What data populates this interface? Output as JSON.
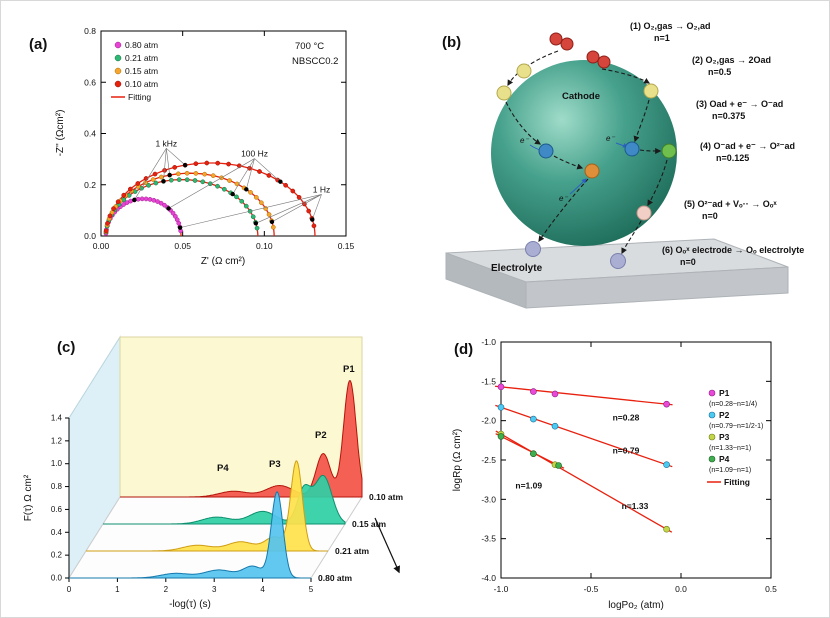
{
  "panels": {
    "a": {
      "label": "(a)"
    },
    "b": {
      "label": "(b)"
    },
    "c": {
      "label": "(c)"
    },
    "d": {
      "label": "(d)"
    }
  },
  "panel_b": {
    "cathode_label": "Cathode",
    "electrolyte_label": "Electrolyte",
    "electron_label": "e⁻",
    "steps": [
      {
        "text": "(1) O₂,gas → O₂,ad",
        "n": "n=1"
      },
      {
        "text": "(2) O₂,gas → 2Oad",
        "n": "n=0.5"
      },
      {
        "text": "(3) Oad + e⁻ → O⁻ad",
        "n": "n=0.375"
      },
      {
        "text": "(4) O⁻ad + e⁻ → O²⁻ad",
        "n": "n=0.125"
      },
      {
        "text": "(5) O²⁻ad + Vₒ·· → Oₒˣ",
        "n": "n=0"
      },
      {
        "text": "(6) Oₒˣ electrode → Oₒ electrolyte",
        "n": "n=0"
      }
    ]
  },
  "chart_data": [
    {
      "id": "a",
      "type": "scatter",
      "title": "Nyquist impedance plot",
      "xlabel": "Z' (Ω cm²)",
      "ylabel": "-Z'' (Ωcm²)",
      "xlim": [
        0,
        0.15
      ],
      "ylim": [
        0,
        0.8
      ],
      "x_ticks": [
        0,
        0.05,
        0.1,
        0.15
      ],
      "y_ticks": [
        0,
        0.2,
        0.4,
        0.6,
        0.8
      ],
      "annotations": [
        "700 °C",
        "NBSCC0.2"
      ],
      "fitting_label": "Fitting",
      "fitting_color": "#e8210f",
      "series": [
        {
          "name": "0.80 atm",
          "color": "#e744d4",
          "edge": "#9c1d8e",
          "x_start": 0.003,
          "x_end": 0.049,
          "peak": 0.145
        },
        {
          "name": "0.21 atm",
          "color": "#2db873",
          "edge": "#146c41",
          "x_start": 0.003,
          "x_end": 0.096,
          "peak": 0.22
        },
        {
          "name": "0.15 atm",
          "color": "#f5a62b",
          "edge": "#a86a0a",
          "x_start": 0.003,
          "x_end": 0.106,
          "peak": 0.245
        },
        {
          "name": "0.10 atm",
          "color": "#e8210f",
          "edge": "#8f1203",
          "x_start": 0.003,
          "x_end": 0.131,
          "peak": 0.285
        }
      ],
      "freq_labels": [
        {
          "label": "1 kHz",
          "x": 0.04,
          "y": 0.35
        },
        {
          "label": "100 Hz",
          "x": 0.094,
          "y": 0.31
        },
        {
          "label": "1 Hz",
          "x": 0.135,
          "y": 0.17
        }
      ]
    },
    {
      "id": "c",
      "type": "area3d",
      "title": "DRT distribution waterfall",
      "xlabel": "-log(τ) (s)",
      "ylabel": "F(τ) Ω cm²",
      "xlim": [
        0,
        5
      ],
      "ylim": [
        0,
        1.4
      ],
      "x_ticks": [
        0,
        1,
        2,
        3,
        4,
        5
      ],
      "y_ticks": [
        0,
        0.2,
        0.4,
        0.6,
        0.8,
        1.0,
        1.2,
        1.4
      ],
      "peak_labels": [
        "P1",
        "P2",
        "P3",
        "P4"
      ],
      "series": [
        {
          "name": "0.10 atm",
          "color": "#f4524a",
          "edge": "#b31409",
          "peaks": [
            {
              "c": 4.75,
              "w": 0.13,
              "h": 1.02
            },
            {
              "c": 4.2,
              "w": 0.15,
              "h": 0.38
            },
            {
              "c": 3.3,
              "w": 0.28,
              "h": 0.1
            },
            {
              "c": 2.35,
              "w": 0.3,
              "h": 0.05
            }
          ]
        },
        {
          "name": "0.15 atm",
          "color": "#2fcfa5",
          "edge": "#0d8f6e",
          "peaks": [
            {
              "c": 4.55,
              "w": 0.18,
              "h": 0.42
            },
            {
              "c": 4.15,
              "w": 0.14,
              "h": 0.3
            },
            {
              "c": 3.3,
              "w": 0.28,
              "h": 0.11
            },
            {
              "c": 2.35,
              "w": 0.3,
              "h": 0.06
            }
          ]
        },
        {
          "name": "0.21 atm",
          "color": "#ffe14a",
          "edge": "#cf9d12",
          "peaks": [
            {
              "c": 4.35,
              "w": 0.12,
              "h": 0.78
            },
            {
              "c": 3.9,
              "w": 0.2,
              "h": 0.12
            },
            {
              "c": 3.2,
              "w": 0.28,
              "h": 0.08
            },
            {
              "c": 2.3,
              "w": 0.3,
              "h": 0.05
            }
          ]
        },
        {
          "name": "0.80 atm",
          "color": "#55c3ee",
          "edge": "#1579ad",
          "peaks": [
            {
              "c": 4.3,
              "w": 0.12,
              "h": 0.75
            },
            {
              "c": 3.8,
              "w": 0.2,
              "h": 0.1
            },
            {
              "c": 3.1,
              "w": 0.3,
              "h": 0.07
            },
            {
              "c": 2.2,
              "w": 0.3,
              "h": 0.04
            }
          ]
        }
      ]
    },
    {
      "id": "d",
      "type": "scatter",
      "title": "logRp vs logPo2",
      "xlabel": "logPo₂ (atm)",
      "ylabel": "logRp (Ω cm²)",
      "xlim": [
        -1.0,
        0.5
      ],
      "ylim": [
        -4.0,
        -1.0
      ],
      "x_ticks": [
        -1.0,
        -0.5,
        0.0,
        0.5
      ],
      "y_ticks": [
        -4.0,
        -3.5,
        -3.0,
        -2.5,
        -2.0,
        -1.5,
        -1.0
      ],
      "fit_color": "#e8210f",
      "fitting_label": "Fitting",
      "series": [
        {
          "name": "P1",
          "sub": "(n=0.28~n=1/4)",
          "color": "#e948d8",
          "edge": "#8e1c82",
          "points": [
            [
              -1.0,
              -1.57
            ],
            [
              -0.82,
              -1.63
            ],
            [
              -0.7,
              -1.66
            ],
            [
              -0.08,
              -1.79
            ]
          ]
        },
        {
          "name": "P2",
          "sub": "(n=0.79~n=1/2-1)",
          "color": "#4ec9f2",
          "edge": "#176f96",
          "points": [
            [
              -1.0,
              -1.83
            ],
            [
              -0.82,
              -1.98
            ],
            [
              -0.7,
              -2.07
            ],
            [
              -0.08,
              -2.56
            ]
          ]
        },
        {
          "name": "P3",
          "sub": "(n=1.33~n=1)",
          "color": "#c3d64a",
          "edge": "#6e7d12",
          "points": [
            [
              -1.0,
              -2.17
            ],
            [
              -0.82,
              -2.42
            ],
            [
              -0.7,
              -2.56
            ],
            [
              -0.08,
              -3.38
            ]
          ]
        },
        {
          "name": "P4",
          "sub": "(n=1.09~n=1)",
          "color": "#3fae4e",
          "edge": "#1c6127",
          "points": [
            [
              -1.0,
              -2.2
            ],
            [
              -0.82,
              -2.42
            ],
            [
              -0.68,
              -2.57
            ]
          ]
        }
      ],
      "slope_labels": [
        {
          "text": "n=0.28",
          "x": -0.38,
          "y": -2.0
        },
        {
          "text": "n=0.79",
          "x": -0.38,
          "y": -2.42
        },
        {
          "text": "n=1.09",
          "x": -0.92,
          "y": -2.86
        },
        {
          "text": "n=1.33",
          "x": -0.33,
          "y": -3.12
        }
      ]
    }
  ]
}
